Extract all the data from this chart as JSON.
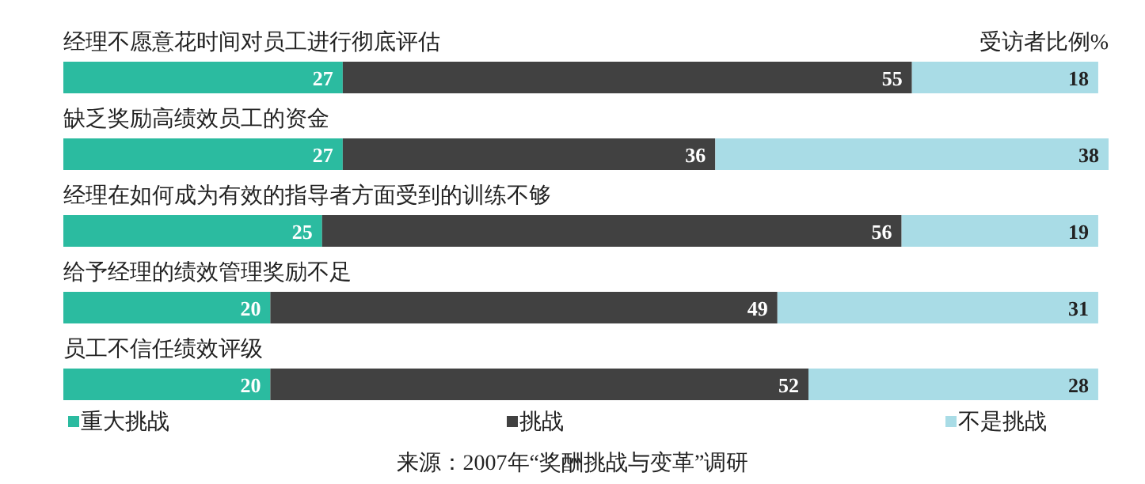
{
  "chart_data": {
    "type": "bar",
    "orientation": "horizontal",
    "stacked": true,
    "data_labels": true,
    "legend": "bottom",
    "xlabel": "受访者比例%",
    "categories": [
      "经理不愿意花时间对员工进行彻底评估",
      "缺乏奖励高绩效员工的资金",
      "经理在如何成为有效的指导者方面受到的训练不够",
      "给予经理的绩效管理奖励不足",
      "员工不信任绩效评级"
    ],
    "series": [
      {
        "name": "重大挑战",
        "color": "#2bbba0",
        "values": [
          27,
          27,
          25,
          20,
          20
        ]
      },
      {
        "name": "挑战",
        "color": "#414141",
        "values": [
          55,
          36,
          56,
          49,
          52
        ]
      },
      {
        "name": "不是挑战",
        "color": "#a9dce6",
        "values": [
          18,
          38,
          19,
          31,
          28
        ]
      }
    ],
    "annotations": [
      "来源：2007年“奖酬挑战与变革”调研"
    ]
  }
}
